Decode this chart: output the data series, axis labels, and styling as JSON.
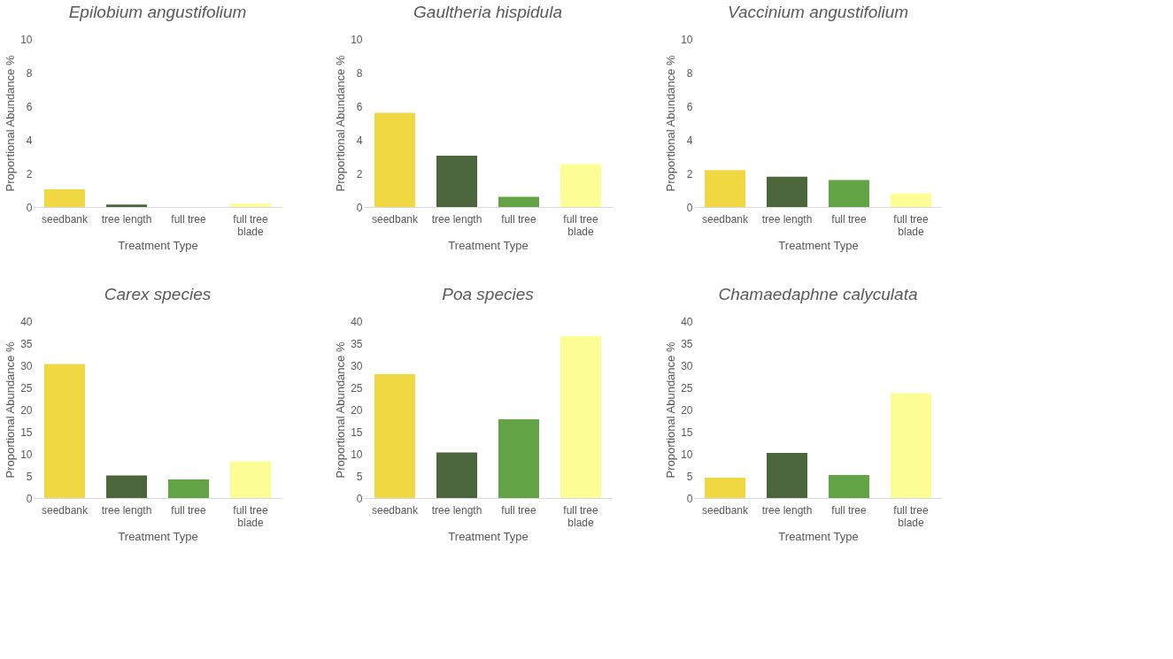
{
  "chart_data": [
    {
      "type": "bar",
      "title": "Epilobium angustifolium",
      "xlabel": "Treatment Type",
      "ylabel": "Proportional Abundance %",
      "categories": [
        "seedbank",
        "tree length",
        "full tree",
        "full tree\nblade"
      ],
      "values": [
        1.05,
        0.15,
        0,
        0.2
      ],
      "colors": [
        "#f0d843",
        "#4a663a",
        "#62a346",
        "#fdfd96"
      ],
      "ylim": [
        0,
        10
      ],
      "yticks": [
        0,
        2,
        4,
        6,
        8,
        10
      ],
      "grid": false
    },
    {
      "type": "bar",
      "title": "Gaultheria hispidula",
      "xlabel": "Treatment Type",
      "ylabel": "Proportional Abundance %",
      "categories": [
        "seedbank",
        "tree length",
        "full tree",
        "full tree\nblade"
      ],
      "values": [
        5.6,
        3.05,
        0.6,
        2.55
      ],
      "colors": [
        "#f0d843",
        "#4a663a",
        "#62a346",
        "#fdfd96"
      ],
      "ylim": [
        0,
        10
      ],
      "yticks": [
        0,
        2,
        4,
        6,
        8,
        10
      ],
      "grid": false
    },
    {
      "type": "bar",
      "title": "Vaccinium angustifolium",
      "xlabel": "Treatment Type",
      "ylabel": "Proportional Abundance %",
      "categories": [
        "seedbank",
        "tree length",
        "full tree",
        "full tree\nblade"
      ],
      "values": [
        2.2,
        1.8,
        1.6,
        0.8
      ],
      "colors": [
        "#f0d843",
        "#4a663a",
        "#62a346",
        "#fdfd96"
      ],
      "ylim": [
        0,
        10
      ],
      "yticks": [
        0,
        2,
        4,
        6,
        8,
        10
      ],
      "grid": false
    },
    {
      "type": "bar",
      "title": "Carex species",
      "xlabel": "Treatment Type",
      "ylabel": "Proportional Abundance %",
      "categories": [
        "seedbank",
        "tree length",
        "full tree",
        "full tree\nblade"
      ],
      "values": [
        30.3,
        5.1,
        4.2,
        8.3
      ],
      "colors": [
        "#f0d843",
        "#4a663a",
        "#62a346",
        "#fdfd96"
      ],
      "ylim": [
        0,
        40
      ],
      "yticks": [
        0,
        5,
        10,
        15,
        20,
        25,
        30,
        35,
        40
      ],
      "grid": false
    },
    {
      "type": "bar",
      "title": "Poa species",
      "xlabel": "Treatment Type",
      "ylabel": "Proportional Abundance %",
      "categories": [
        "seedbank",
        "tree length",
        "full tree",
        "full tree\nblade"
      ],
      "values": [
        28,
        10.3,
        17.8,
        36.6
      ],
      "colors": [
        "#f0d843",
        "#4a663a",
        "#62a346",
        "#fdfd96"
      ],
      "ylim": [
        0,
        40
      ],
      "yticks": [
        0,
        5,
        10,
        15,
        20,
        25,
        30,
        35,
        40
      ],
      "grid": false
    },
    {
      "type": "bar",
      "title": "Chamaedaphne calyculata",
      "xlabel": "Treatment Type",
      "ylabel": "Proportional Abundance %",
      "categories": [
        "seedbank",
        "tree length",
        "full tree",
        "full tree\nblade"
      ],
      "values": [
        4.6,
        10.2,
        5.2,
        23.7
      ],
      "colors": [
        "#f0d843",
        "#4a663a",
        "#62a346",
        "#fdfd96"
      ],
      "ylim": [
        0,
        40
      ],
      "yticks": [
        0,
        5,
        10,
        15,
        20,
        25,
        30,
        35,
        40
      ],
      "grid": false
    }
  ]
}
